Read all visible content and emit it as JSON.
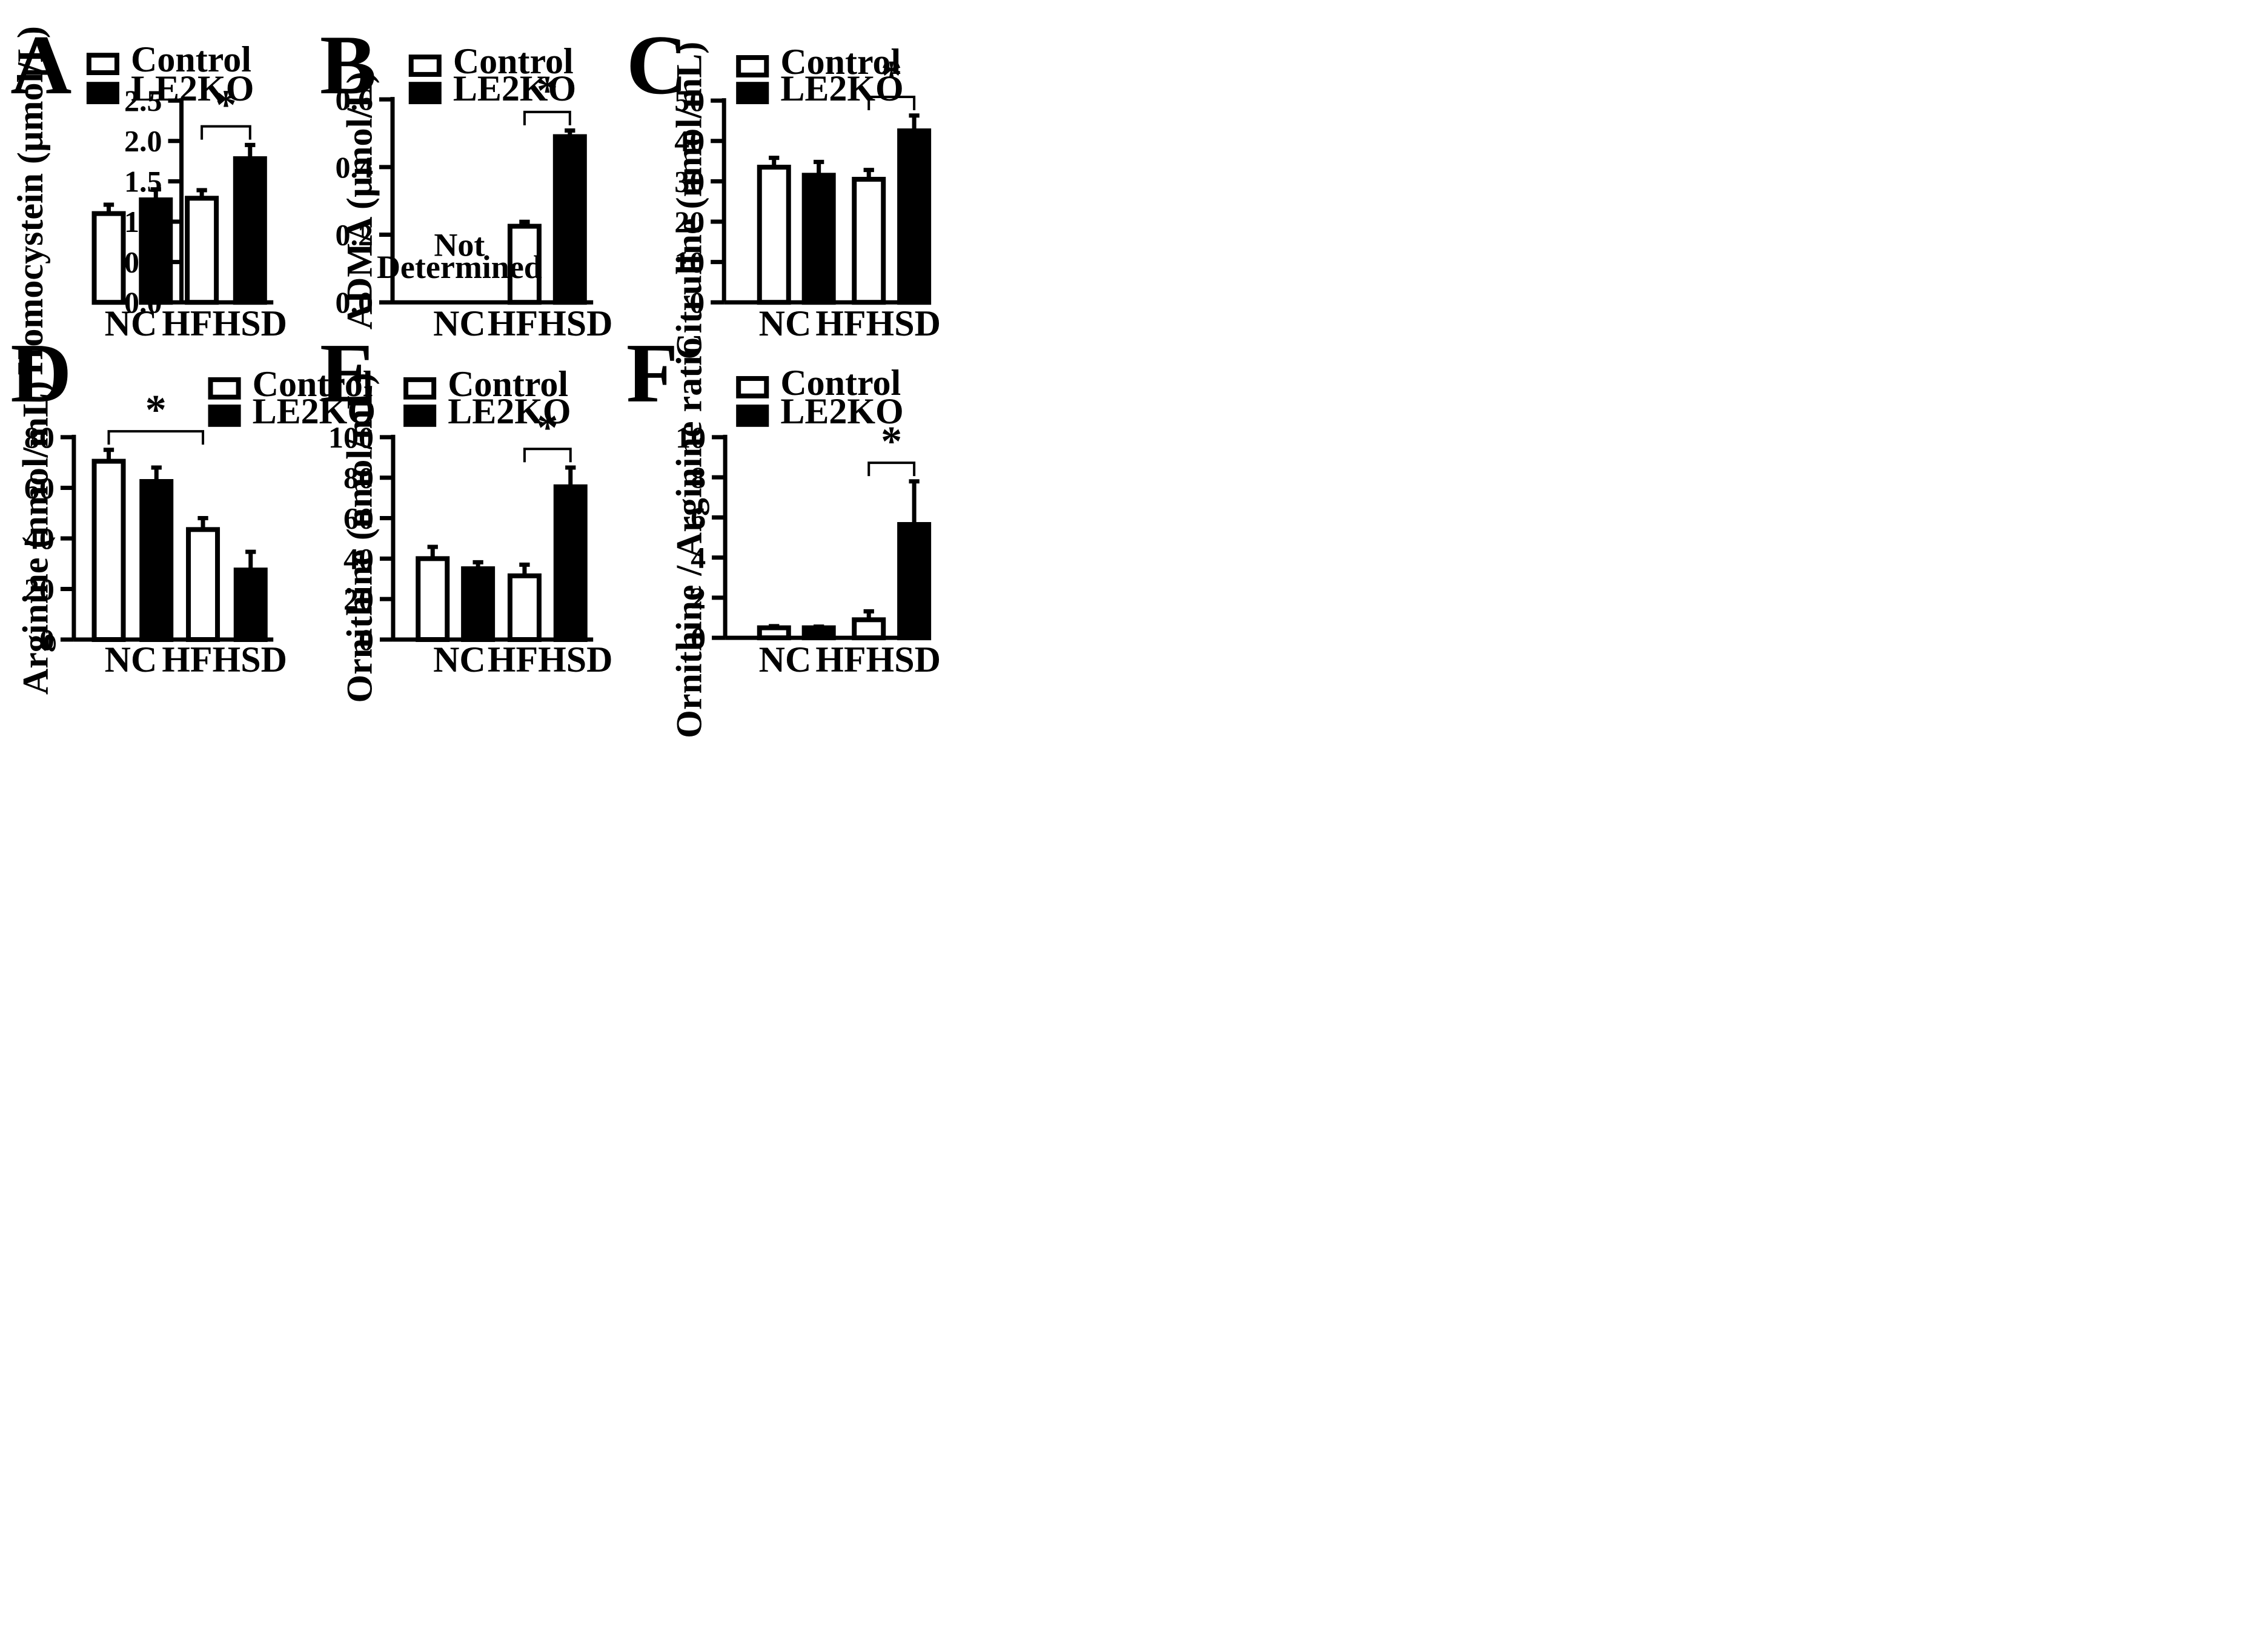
{
  "legend": {
    "control": "Control",
    "le2ko": "LE2KO"
  },
  "colors": {
    "control": "#ffffff",
    "le2ko": "#000000",
    "stroke": "#000000"
  },
  "chart_data": [
    {
      "panel": "A",
      "type": "bar",
      "categories": [
        "NC",
        "HFHSD"
      ],
      "ylabel": "Homocystein (µmol/L)",
      "ylim": [
        0,
        2.5
      ],
      "yticks": [
        "0.0",
        "0.5",
        "1.0",
        "1.5",
        "2.0",
        "2.5"
      ],
      "series": [
        {
          "name": "Control",
          "values": [
            1.1,
            1.29
          ],
          "errors": [
            0.11,
            0.1
          ]
        },
        {
          "name": "LE2KO",
          "values": [
            1.27,
            1.78
          ],
          "errors": [
            0.13,
            0.17
          ]
        }
      ],
      "significance": [
        {
          "category": "HFHSD",
          "label": "*"
        }
      ]
    },
    {
      "panel": "B",
      "type": "bar",
      "categories": [
        "NC",
        "HFHSD"
      ],
      "ylabel": "ADMA (µmol/L)",
      "ylim": [
        0,
        0.6
      ],
      "yticks": [
        "0.0",
        "0.2",
        "0.4",
        "0.6"
      ],
      "series": [
        {
          "name": "Control",
          "values": [
            null,
            0.225
          ],
          "errors": [
            null,
            0.013
          ]
        },
        {
          "name": "LE2KO",
          "values": [
            null,
            0.49
          ],
          "errors": [
            null,
            0.018
          ]
        }
      ],
      "annotation": {
        "category": "NC",
        "line1": "Not",
        "line2": "Determined"
      },
      "significance": [
        {
          "category": "HFHSD",
          "label": "*"
        }
      ]
    },
    {
      "panel": "C",
      "type": "bar",
      "categories": [
        "NC",
        "HFHSD"
      ],
      "ylabel": "Citruline (nmol/mL)",
      "ylim": [
        0,
        50
      ],
      "yticks": [
        "0",
        "10",
        "20",
        "30",
        "40",
        "50"
      ],
      "series": [
        {
          "name": "Control",
          "values": [
            33.5,
            30.5
          ],
          "errors": [
            2.3,
            2.3
          ]
        },
        {
          "name": "LE2KO",
          "values": [
            31.5,
            42.5
          ],
          "errors": [
            3.3,
            3.8
          ]
        }
      ],
      "significance": [
        {
          "category": "HFHSD",
          "label": "*"
        }
      ]
    },
    {
      "panel": "D",
      "type": "bar",
      "categories": [
        "NC",
        "HFHSD"
      ],
      "ylabel": "Arginine (nmol/mL)",
      "ylim": [
        0,
        80
      ],
      "yticks": [
        "0",
        "20",
        "40",
        "60",
        "80"
      ],
      "series": [
        {
          "name": "Control",
          "values": [
            70.5,
            43.5
          ],
          "errors": [
            4.5,
            4.5
          ]
        },
        {
          "name": "LE2KO",
          "values": [
            62.5,
            27.5
          ],
          "errors": [
            5.5,
            7.2
          ]
        }
      ],
      "significance": [
        {
          "from": "NC-Control",
          "to": "HFHSD-Control",
          "label": "*"
        }
      ]
    },
    {
      "panel": "E",
      "type": "bar",
      "categories": [
        "NC",
        "HFHSD"
      ],
      "ylabel": "Ornithine (nmol/mL)",
      "ylim": [
        0,
        100
      ],
      "yticks": [
        "0",
        "20",
        "40",
        "60",
        "80",
        "100"
      ],
      "series": [
        {
          "name": "Control",
          "values": [
            40,
            31.5
          ],
          "errors": [
            5.8,
            5.5
          ]
        },
        {
          "name": "LE2KO",
          "values": [
            35,
            75.5
          ],
          "errors": [
            3.2,
            9.5
          ]
        }
      ],
      "significance": [
        {
          "category": "HFHSD",
          "label": "*"
        }
      ]
    },
    {
      "panel": "F",
      "type": "bar",
      "categories": [
        "NC",
        "HFHSD"
      ],
      "ylabel": "Ornithine / Arginine ratio",
      "ylim": [
        0,
        10
      ],
      "yticks": [
        "0",
        "2",
        "4",
        "6",
        "8",
        "10"
      ],
      "series": [
        {
          "name": "Control",
          "values": [
            0.5,
            0.9
          ],
          "errors": [
            0.08,
            0.42
          ]
        },
        {
          "name": "LE2KO",
          "values": [
            0.5,
            5.65
          ],
          "errors": [
            0.06,
            2.15
          ]
        }
      ],
      "significance": [
        {
          "category": "HFHSD",
          "label": "*"
        }
      ]
    }
  ]
}
